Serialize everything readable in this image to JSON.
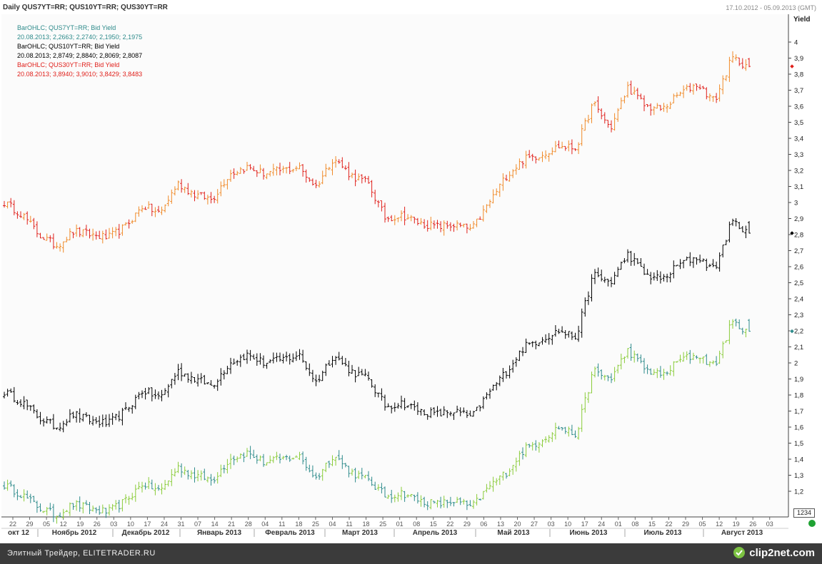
{
  "header": {
    "title": "Daily QUS7YT=RR; QUS10YT=RR; QUS30YT=RR",
    "date_range": "17.10.2012 - 05.09.2013 (GMT)"
  },
  "legend": [
    {
      "name": "BarOHLC; QUS7YT=RR; Bid Yield",
      "values": "20.08.2013; 2,2663; 2,2740; 2,1950; 2,1975",
      "color": "#2e8b8b"
    },
    {
      "name": "BarOHLC; QUS10YT=RR; Bid Yield",
      "values": "20.08.2013; 2,8749; 2,8840; 2,8069; 2,8087",
      "color": "#000000"
    },
    {
      "name": "BarOHLC; QUS30YT=RR; Bid Yield",
      "values": "20.08.2013; 3,8940; 3,9010; 3,8429; 3,8483",
      "color": "#e0201b"
    }
  ],
  "count_box": "1234",
  "footer": {
    "text": "Элитный Трейдер, ELITETRADER.RU",
    "logo": "clip2net.com"
  },
  "chart_data": {
    "type": "bar",
    "title": "Daily QUS7YT=RR; QUS10YT=RR; QUS30YT=RR",
    "ylabel": "Yield",
    "ylim": [
      1.1,
      4.05
    ],
    "y_ticks": [
      "1,2",
      "1,3",
      "1,4",
      "1,5",
      "1,6",
      "1,7",
      "1,8",
      "1,9",
      "2",
      "2,1",
      "2,2",
      "2,3",
      "2,4",
      "2,5",
      "2,6",
      "2,7",
      "2,8",
      "2,9",
      "3",
      "3,1",
      "3,2",
      "3,3",
      "3,4",
      "3,5",
      "3,6",
      "3,7",
      "3,8",
      "3,9",
      "4"
    ],
    "x_day_ticks": [
      "22",
      "29",
      "05",
      "12",
      "19",
      "26",
      "03",
      "10",
      "17",
      "24",
      "31",
      "07",
      "14",
      "21",
      "28",
      "04",
      "11",
      "18",
      "25",
      "04",
      "11",
      "18",
      "25",
      "01",
      "08",
      "15",
      "22",
      "29",
      "06",
      "13",
      "20",
      "27",
      "03",
      "10",
      "17",
      "24",
      "01",
      "08",
      "15",
      "22",
      "29",
      "05",
      "12",
      "19",
      "26",
      "03"
    ],
    "x_months": [
      "окт 12",
      "Ноябрь 2012",
      "Декабрь 2012",
      "Январь 2013",
      "Февраль 2013",
      "Март 2013",
      "Апрель 2013",
      "Май 2013",
      "Июнь 2013",
      "Июль 2013",
      "Август 2013"
    ],
    "grid": false,
    "legend_position": "top-left",
    "series": [
      {
        "name": "QUS30YT=RR",
        "color": "#e0201b",
        "color_up": "#f08a28",
        "weekly_close": [
          3.0,
          2.93,
          2.8,
          2.73,
          2.82,
          2.8,
          2.78,
          2.85,
          2.98,
          2.93,
          3.12,
          3.05,
          3.02,
          3.18,
          3.22,
          3.18,
          3.2,
          3.22,
          3.1,
          3.28,
          3.17,
          3.12,
          2.9,
          2.92,
          2.87,
          2.85,
          2.86,
          2.83,
          3.0,
          3.17,
          3.27,
          3.3,
          3.35,
          3.34,
          3.62,
          3.46,
          3.72,
          3.6,
          3.58,
          3.68,
          3.74,
          3.63,
          3.9,
          3.85
        ],
        "last": [
          3.894,
          3.901,
          3.8429,
          3.8483
        ]
      },
      {
        "name": "QUS10YT=RR",
        "color": "#000000",
        "color_up": "#000000",
        "weekly_close": [
          1.82,
          1.76,
          1.66,
          1.6,
          1.68,
          1.64,
          1.62,
          1.7,
          1.83,
          1.78,
          1.95,
          1.9,
          1.86,
          2.0,
          2.05,
          2.0,
          2.02,
          2.05,
          1.88,
          2.05,
          1.95,
          1.9,
          1.73,
          1.75,
          1.7,
          1.68,
          1.7,
          1.66,
          1.82,
          1.95,
          2.1,
          2.15,
          2.2,
          2.16,
          2.55,
          2.5,
          2.68,
          2.55,
          2.52,
          2.62,
          2.66,
          2.58,
          2.88,
          2.82
        ],
        "last": [
          2.8749,
          2.884,
          2.8069,
          2.8087
        ]
      },
      {
        "name": "QUS7YT=RR",
        "color": "#2e8b8b",
        "color_up": "#8acc3a",
        "weekly_close": [
          1.24,
          1.18,
          1.1,
          1.05,
          1.12,
          1.09,
          1.07,
          1.14,
          1.25,
          1.2,
          1.35,
          1.3,
          1.27,
          1.4,
          1.44,
          1.38,
          1.4,
          1.42,
          1.28,
          1.43,
          1.32,
          1.27,
          1.17,
          1.19,
          1.14,
          1.12,
          1.14,
          1.1,
          1.23,
          1.32,
          1.46,
          1.52,
          1.6,
          1.55,
          1.95,
          1.9,
          2.08,
          1.96,
          1.92,
          2.02,
          2.05,
          1.98,
          2.25,
          2.2
        ],
        "last": [
          2.2663,
          2.274,
          2.195,
          2.1975
        ]
      }
    ]
  }
}
